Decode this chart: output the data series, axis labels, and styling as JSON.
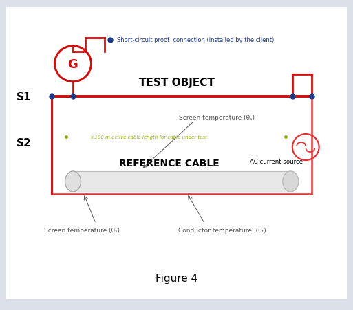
{
  "fig_width": 5.13,
  "fig_height": 4.52,
  "bg_color": "#dce0e8",
  "panel_bg": "#ffffff",
  "red": "#cc1111",
  "blue": "#1a3a8a",
  "green_text": "#9aaa10",
  "gray_text": "#555555",
  "title": "Figure 4",
  "test_object_label": "TEST OBJECT",
  "ref_cable_label": "REFERENCE CABLE",
  "s1_label": "S1",
  "s2_label": "S2",
  "g_label": "G",
  "short_circuit_note": "Short-circuit proof  connection (installed by the client)",
  "screen_temp_top": "Screen temperature (θₛ)",
  "screen_temp_bot": "Screen temperature (θₛ)",
  "conductor_temp": "Conductor temperature  (θₜ)",
  "ac_source_label": "AC current source",
  "green_note": "x 100 m active cable length for cable under test",
  "xlim": [
    0,
    10
  ],
  "ylim": [
    0,
    9
  ]
}
